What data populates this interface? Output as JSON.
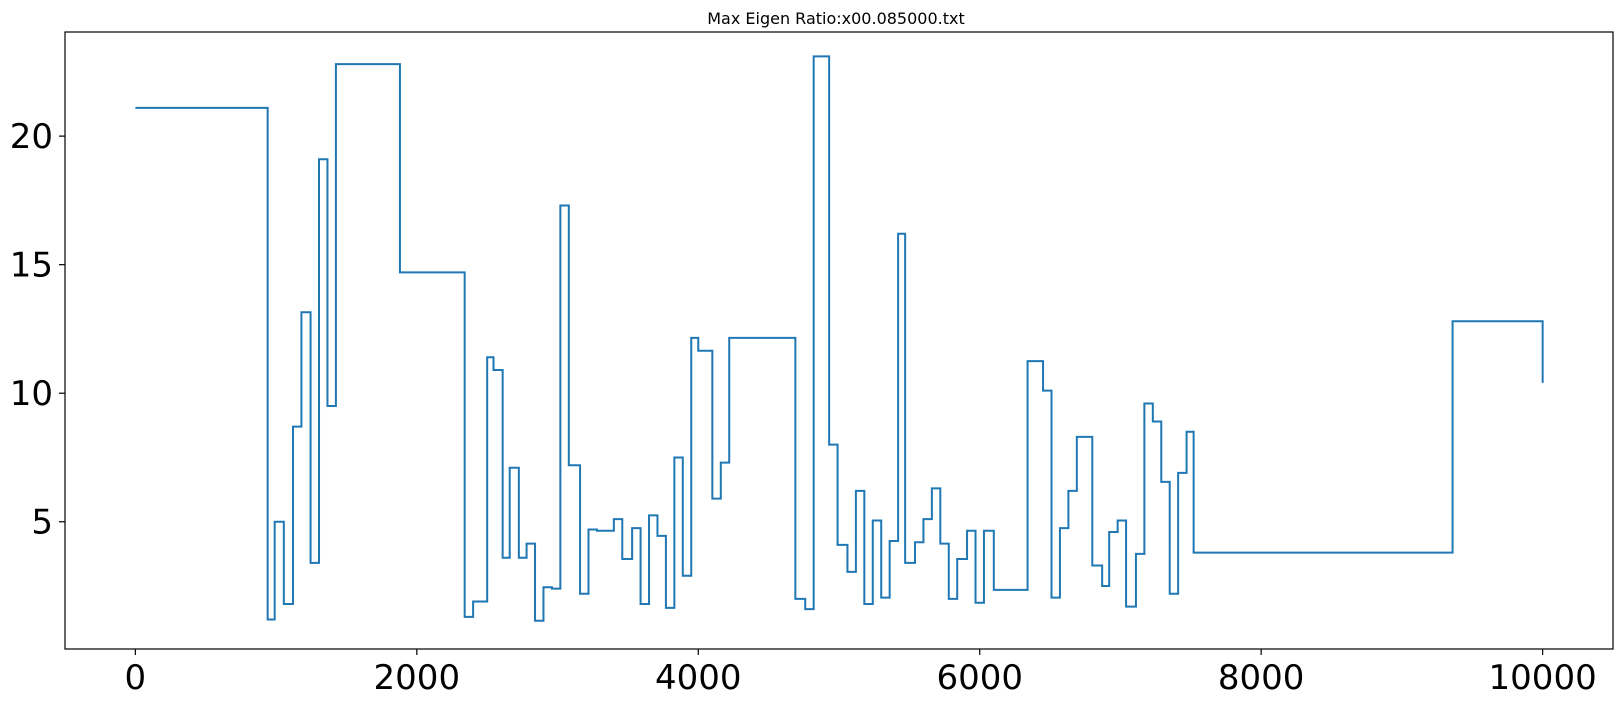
{
  "chart_data": {
    "type": "line",
    "title": "Max Eigen Ratio:x00.085000.txt",
    "xlabel": "",
    "ylabel": "",
    "xlim": [
      -500,
      10500
    ],
    "ylim": [
      0.05,
      24.05
    ],
    "xticks": [
      0,
      2000,
      4000,
      6000,
      8000,
      10000
    ],
    "xtick_labels": [
      "0",
      "2000",
      "4000",
      "6000",
      "8000",
      "10000"
    ],
    "yticks": [
      5,
      10,
      15,
      20
    ],
    "ytick_labels": [
      "5",
      "10",
      "15",
      "20"
    ],
    "grid": false,
    "legend": "none",
    "series": [
      {
        "color": "#1f77b4",
        "step": "post",
        "x": [
          0,
          940,
          990,
          1055,
          1120,
          1180,
          1245,
          1305,
          1365,
          1425,
          1880,
          2340,
          2400,
          2500,
          2545,
          2610,
          2660,
          2725,
          2780,
          2840,
          2900,
          2960,
          3020,
          3080,
          3160,
          3220,
          3280,
          3400,
          3460,
          3530,
          3590,
          3650,
          3710,
          3770,
          3830,
          3890,
          3950,
          4000,
          4100,
          4160,
          4220,
          4690,
          4760,
          4820,
          4930,
          4990,
          5060,
          5120,
          5180,
          5240,
          5300,
          5360,
          5420,
          5470,
          5540,
          5600,
          5660,
          5720,
          5780,
          5840,
          5910,
          5970,
          6030,
          6100,
          6340,
          6450,
          6510,
          6570,
          6630,
          6690,
          6800,
          6870,
          6920,
          6980,
          7040,
          7110,
          7170,
          7230,
          7290,
          7350,
          7410,
          7470,
          7520,
          9360,
          10000
        ],
        "y": [
          21.1,
          1.2,
          5.0,
          1.8,
          8.7,
          13.15,
          3.4,
          19.1,
          9.5,
          22.8,
          14.7,
          1.3,
          1.9,
          11.4,
          10.9,
          3.6,
          7.1,
          3.6,
          4.15,
          1.15,
          2.45,
          2.4,
          17.3,
          7.2,
          2.2,
          4.7,
          4.65,
          5.1,
          3.55,
          4.75,
          1.8,
          5.25,
          4.45,
          1.65,
          7.5,
          2.9,
          12.15,
          11.65,
          5.9,
          7.3,
          12.15,
          2.0,
          1.6,
          23.1,
          8.0,
          4.1,
          3.05,
          6.2,
          1.8,
          5.05,
          2.05,
          4.25,
          16.2,
          3.4,
          4.2,
          5.1,
          6.3,
          4.15,
          2.0,
          3.55,
          4.65,
          1.85,
          4.65,
          2.35,
          11.25,
          10.1,
          2.05,
          4.75,
          6.2,
          8.3,
          3.3,
          2.5,
          4.6,
          5.05,
          1.7,
          3.75,
          9.6,
          8.9,
          6.55,
          2.2,
          6.9,
          8.5,
          3.8,
          12.8,
          10.4
        ]
      }
    ]
  }
}
